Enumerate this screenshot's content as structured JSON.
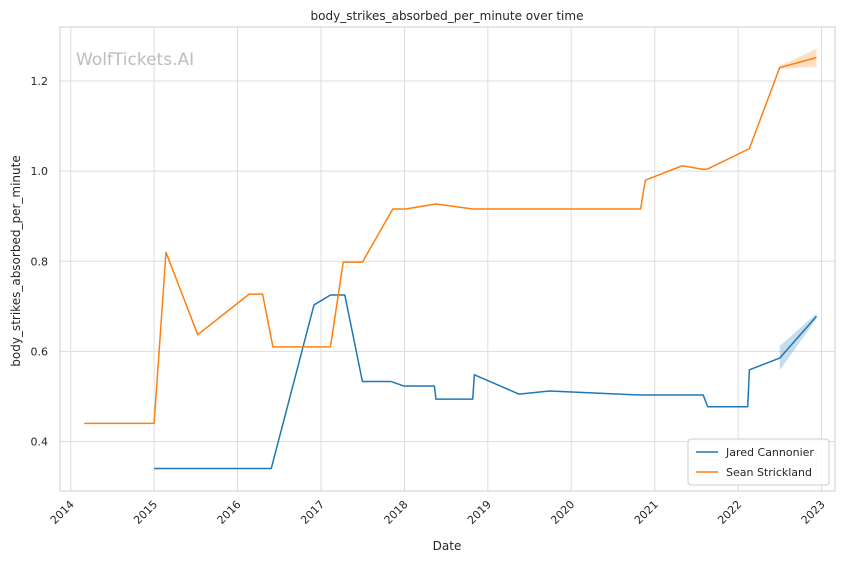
{
  "chart_data": {
    "type": "line",
    "title": "body_strikes_absorbed_per_minute over time",
    "xlabel": "Date",
    "ylabel": "body_strikes_absorbed_per_minute",
    "watermark": "WolfTickets.AI",
    "xlim": [
      "2013-11-15",
      "2023-03-01"
    ],
    "ylim": [
      0.29,
      1.32
    ],
    "xticks": [
      "2014",
      "2015",
      "2016",
      "2017",
      "2018",
      "2019",
      "2020",
      "2021",
      "2022",
      "2023"
    ],
    "yticks": [
      0.4,
      0.6,
      0.8,
      1.0,
      1.2
    ],
    "ytick_labels": [
      "0.4",
      "0.6",
      "0.8",
      "1.0",
      "1.2"
    ],
    "grid": true,
    "legend_position": "bottom-right",
    "series": [
      {
        "name": "Jared Cannonier",
        "color": "#1f77b4",
        "points": [
          [
            "2015-01-01",
            0.34
          ],
          [
            "2016-05-28",
            0.34
          ],
          [
            "2016-12-01",
            0.703
          ],
          [
            "2017-02-11",
            0.725
          ],
          [
            "2017-04-15",
            0.725
          ],
          [
            "2017-07-01",
            0.533
          ],
          [
            "2017-11-04",
            0.533
          ],
          [
            "2017-12-30",
            0.523
          ],
          [
            "2018-05-12",
            0.523
          ],
          [
            "2018-05-19",
            0.494
          ],
          [
            "2018-10-27",
            0.494
          ],
          [
            "2018-11-03",
            0.548
          ],
          [
            "2019-05-18",
            0.505
          ],
          [
            "2019-09-28",
            0.512
          ],
          [
            "2020-10-31",
            0.503
          ],
          [
            "2021-08-01",
            0.503
          ],
          [
            "2021-08-21",
            0.477
          ],
          [
            "2022-02-12",
            0.477
          ],
          [
            "2022-02-19",
            0.559
          ],
          [
            "2022-07-02",
            0.585
          ],
          [
            "2022-12-10",
            0.678
          ]
        ],
        "band": [
          [
            "2022-07-02",
            0.558,
            0.612
          ],
          [
            "2022-12-10",
            0.672,
            0.684
          ]
        ]
      },
      {
        "name": "Sean Strickland",
        "color": "#ff7f0e",
        "points": [
          [
            "2014-03-01",
            0.44
          ],
          [
            "2015-01-01",
            0.44
          ],
          [
            "2015-02-22",
            0.82
          ],
          [
            "2015-07-11",
            0.637
          ],
          [
            "2016-02-21",
            0.727
          ],
          [
            "2016-04-20",
            0.727
          ],
          [
            "2016-06-04",
            0.61
          ],
          [
            "2017-02-11",
            0.61
          ],
          [
            "2017-04-08",
            0.798
          ],
          [
            "2017-07-01",
            0.798
          ],
          [
            "2017-11-11",
            0.916
          ],
          [
            "2018-01-06",
            0.916
          ],
          [
            "2018-05-19",
            0.927
          ],
          [
            "2018-10-27",
            0.916
          ],
          [
            "2020-10-31",
            0.916
          ],
          [
            "2020-11-14",
            0.96
          ],
          [
            "2020-11-21",
            0.98
          ],
          [
            "2021-05-01",
            1.012
          ],
          [
            "2021-08-01",
            1.004
          ],
          [
            "2021-08-21",
            1.005
          ],
          [
            "2022-02-19",
            1.05
          ],
          [
            "2022-07-02",
            1.23
          ],
          [
            "2022-12-10",
            1.252
          ]
        ],
        "band": [
          [
            "2022-07-02",
            1.227,
            1.233
          ],
          [
            "2022-12-10",
            1.232,
            1.272
          ]
        ]
      }
    ]
  }
}
